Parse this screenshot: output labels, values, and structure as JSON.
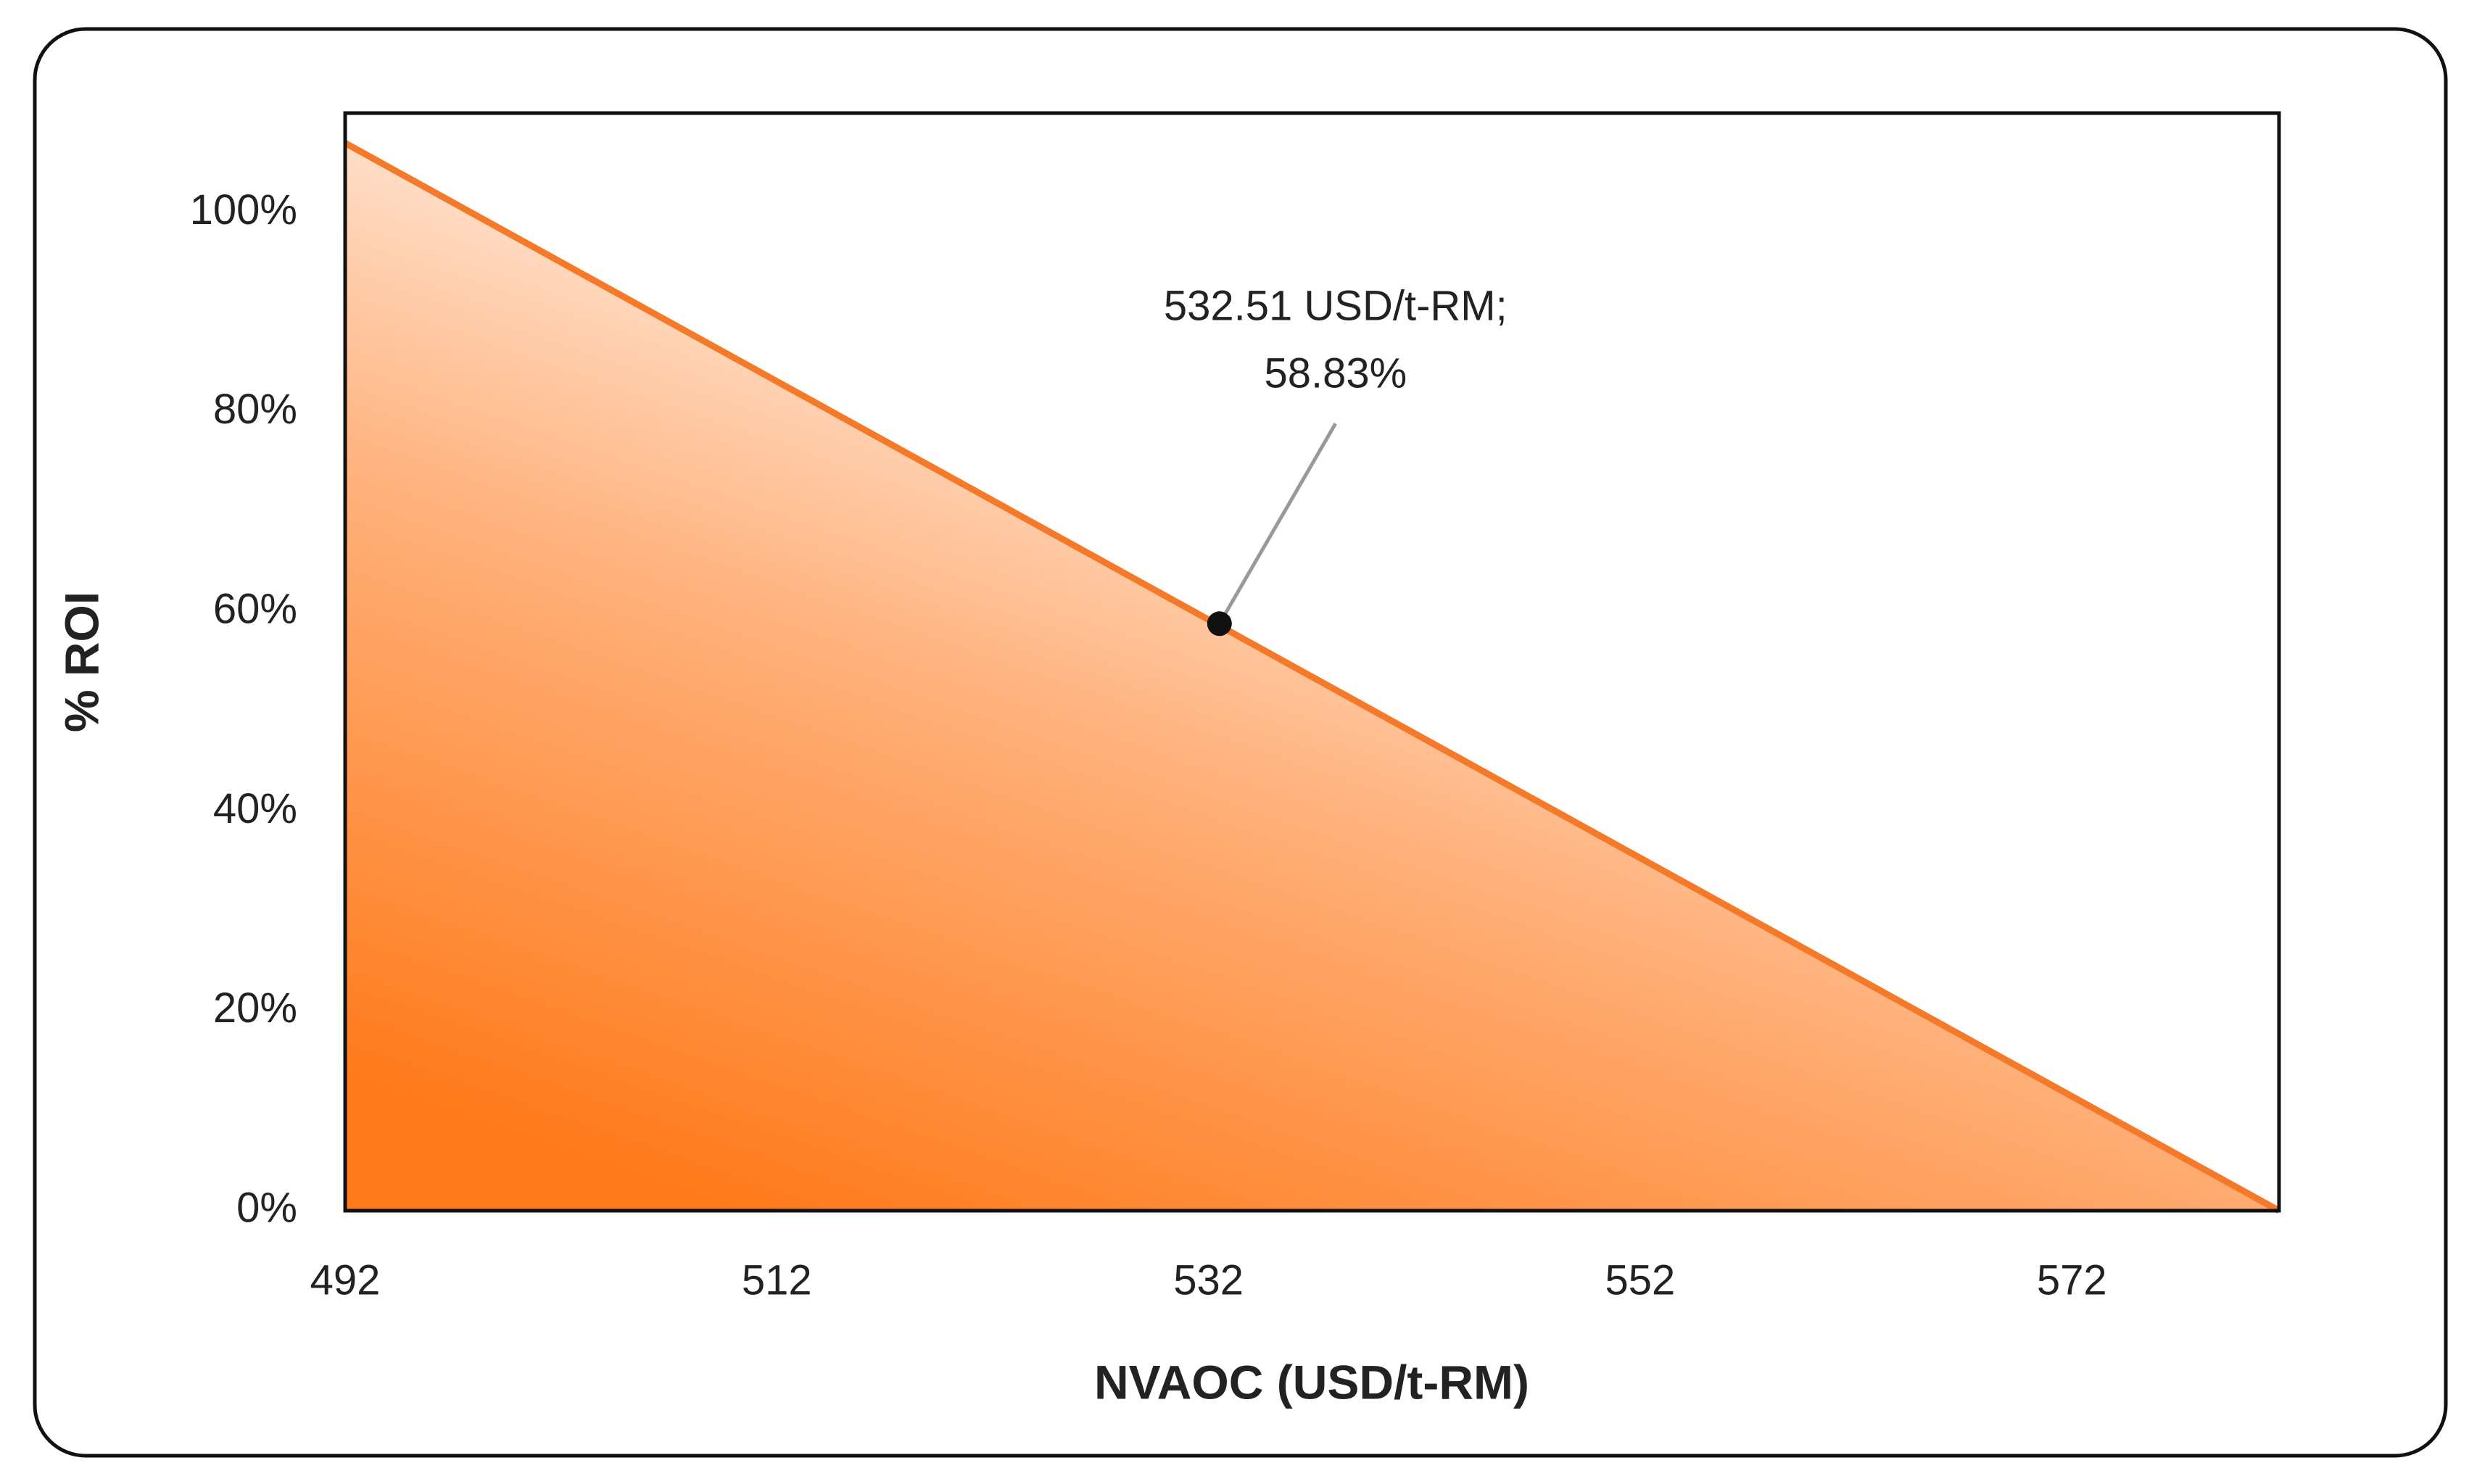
{
  "chart_data": {
    "type": "area-line",
    "x_label": "NVAOC (USD/t-RM)",
    "y_label": "% ROI",
    "x": [
      492,
      581.6
    ],
    "values": [
      107,
      0
    ],
    "color": "#f47a2a",
    "xlim": [
      492,
      581.6
    ],
    "xticks": [
      492,
      512,
      532,
      552,
      572
    ],
    "ylim": [
      0,
      110
    ],
    "yticks": [
      {
        "value": 0,
        "label": "0%"
      },
      {
        "value": 20,
        "label": "20%"
      },
      {
        "value": 40,
        "label": "40%"
      },
      {
        "value": 60,
        "label": "60%"
      },
      {
        "value": 80,
        "label": "80%"
      },
      {
        "value": 100,
        "label": "100%"
      }
    ],
    "annotations": [
      {
        "x": 532.51,
        "y": 58.83,
        "label": [
          "532.51 USD/t-RM;",
          "58.83%"
        ]
      }
    ]
  }
}
